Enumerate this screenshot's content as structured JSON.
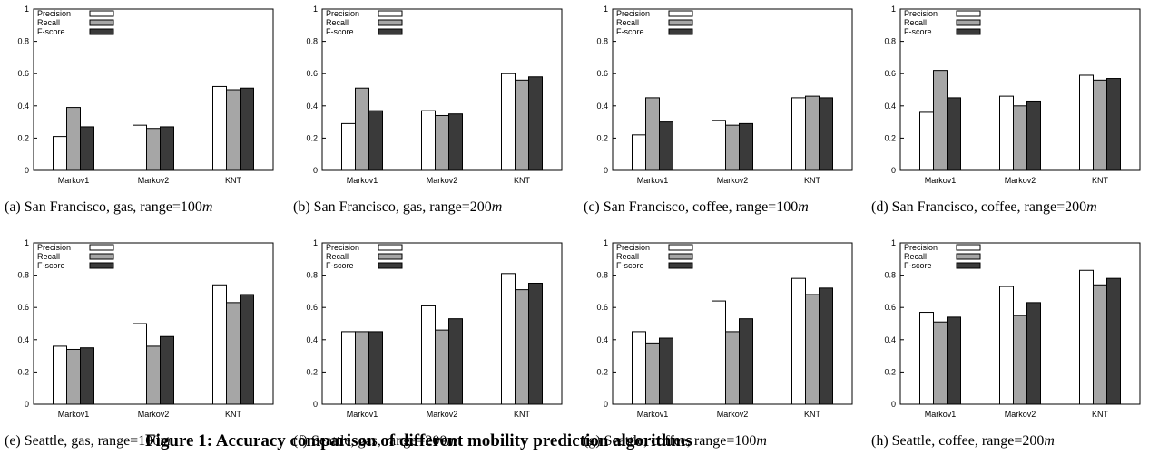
{
  "legend": [
    "Precision",
    "Recall",
    "F-score"
  ],
  "colors": {
    "Precision": "#ffffff",
    "Recall": "#a6a6a6",
    "F-score": "#3a3a3a"
  },
  "figure_caption": "Figure 1: Accuracy comparison of different mobility prediction algorithms",
  "chart_data": [
    {
      "type": "bar",
      "label": "(a)",
      "caption": "San Francisco, gas, range=100",
      "unit": "m",
      "categories": [
        "Markov1",
        "Markov2",
        "KNT"
      ],
      "yticks": [
        "0",
        "0.2",
        "0.4",
        "0.6",
        "0.8",
        "1"
      ],
      "ylim": [
        0,
        1
      ],
      "legend_position": "top-left",
      "series": [
        {
          "name": "Precision",
          "values": [
            0.21,
            0.28,
            0.52
          ]
        },
        {
          "name": "Recall",
          "values": [
            0.39,
            0.26,
            0.5
          ]
        },
        {
          "name": "F-score",
          "values": [
            0.27,
            0.27,
            0.51
          ]
        }
      ]
    },
    {
      "type": "bar",
      "label": "(b)",
      "caption": "San Francisco, gas, range=200",
      "unit": "m",
      "categories": [
        "Markov1",
        "Markov2",
        "KNT"
      ],
      "yticks": [
        "0",
        "0.2",
        "0.4",
        "0.6",
        "0.8",
        "1"
      ],
      "ylim": [
        0,
        1
      ],
      "legend_position": "top-left",
      "series": [
        {
          "name": "Precision",
          "values": [
            0.29,
            0.37,
            0.6
          ]
        },
        {
          "name": "Recall",
          "values": [
            0.51,
            0.34,
            0.56
          ]
        },
        {
          "name": "F-score",
          "values": [
            0.37,
            0.35,
            0.58
          ]
        }
      ]
    },
    {
      "type": "bar",
      "label": "(c)",
      "caption": "San Francisco, coffee, range=100",
      "unit": "m",
      "categories": [
        "Markov1",
        "Markov2",
        "KNT"
      ],
      "yticks": [
        "0",
        "0.2",
        "0.4",
        "0.6",
        "0.8",
        "1"
      ],
      "ylim": [
        0,
        1
      ],
      "legend_position": "top-left",
      "series": [
        {
          "name": "Precision",
          "values": [
            0.22,
            0.31,
            0.45
          ]
        },
        {
          "name": "Recall",
          "values": [
            0.45,
            0.28,
            0.46
          ]
        },
        {
          "name": "F-score",
          "values": [
            0.3,
            0.29,
            0.45
          ]
        }
      ]
    },
    {
      "type": "bar",
      "label": "(d)",
      "caption": "San Francisco, coffee, range=200",
      "unit": "m",
      "categories": [
        "Markov1",
        "Markov2",
        "KNT"
      ],
      "yticks": [
        "0",
        "0.2",
        "0.4",
        "0.6",
        "0.8",
        "1"
      ],
      "ylim": [
        0,
        1
      ],
      "legend_position": "top-left",
      "series": [
        {
          "name": "Precision",
          "values": [
            0.36,
            0.46,
            0.59
          ]
        },
        {
          "name": "Recall",
          "values": [
            0.62,
            0.4,
            0.56
          ]
        },
        {
          "name": "F-score",
          "values": [
            0.45,
            0.43,
            0.57
          ]
        }
      ]
    },
    {
      "type": "bar",
      "label": "(e)",
      "caption": "Seattle, gas, range=100",
      "unit": "m",
      "categories": [
        "Markov1",
        "Markov2",
        "KNT"
      ],
      "yticks": [
        "0",
        "0.2",
        "0.4",
        "0.6",
        "0.8",
        "1"
      ],
      "ylim": [
        0,
        1
      ],
      "legend_position": "top-left",
      "series": [
        {
          "name": "Precision",
          "values": [
            0.36,
            0.5,
            0.74
          ]
        },
        {
          "name": "Recall",
          "values": [
            0.34,
            0.36,
            0.63
          ]
        },
        {
          "name": "F-score",
          "values": [
            0.35,
            0.42,
            0.68
          ]
        }
      ]
    },
    {
      "type": "bar",
      "label": "(f)",
      "caption": "Seattle, gas, range=200",
      "unit": "m",
      "categories": [
        "Markov1",
        "Markov2",
        "KNT"
      ],
      "yticks": [
        "0",
        "0.2",
        "0.4",
        "0.6",
        "0.8",
        "1"
      ],
      "ylim": [
        0,
        1
      ],
      "legend_position": "top-left",
      "series": [
        {
          "name": "Precision",
          "values": [
            0.45,
            0.61,
            0.81
          ]
        },
        {
          "name": "Recall",
          "values": [
            0.45,
            0.46,
            0.71
          ]
        },
        {
          "name": "F-score",
          "values": [
            0.45,
            0.53,
            0.75
          ]
        }
      ]
    },
    {
      "type": "bar",
      "label": "(g)",
      "caption": "Seattle, coffee, range=100",
      "unit": "m",
      "categories": [
        "Markov1",
        "Markov2",
        "KNT"
      ],
      "yticks": [
        "0",
        "0.2",
        "0.4",
        "0.6",
        "0.8",
        "1"
      ],
      "ylim": [
        0,
        1
      ],
      "legend_position": "top-left",
      "series": [
        {
          "name": "Precision",
          "values": [
            0.45,
            0.64,
            0.78
          ]
        },
        {
          "name": "Recall",
          "values": [
            0.38,
            0.45,
            0.68
          ]
        },
        {
          "name": "F-score",
          "values": [
            0.41,
            0.53,
            0.72
          ]
        }
      ]
    },
    {
      "type": "bar",
      "label": "(h)",
      "caption": "Seattle, coffee, range=200",
      "unit": "m",
      "categories": [
        "Markov1",
        "Markov2",
        "KNT"
      ],
      "yticks": [
        "0",
        "0.2",
        "0.4",
        "0.6",
        "0.8",
        "1"
      ],
      "ylim": [
        0,
        1
      ],
      "legend_position": "top-left",
      "series": [
        {
          "name": "Precision",
          "values": [
            0.57,
            0.73,
            0.83
          ]
        },
        {
          "name": "Recall",
          "values": [
            0.51,
            0.55,
            0.74
          ]
        },
        {
          "name": "F-score",
          "values": [
            0.54,
            0.63,
            0.78
          ]
        }
      ]
    }
  ]
}
